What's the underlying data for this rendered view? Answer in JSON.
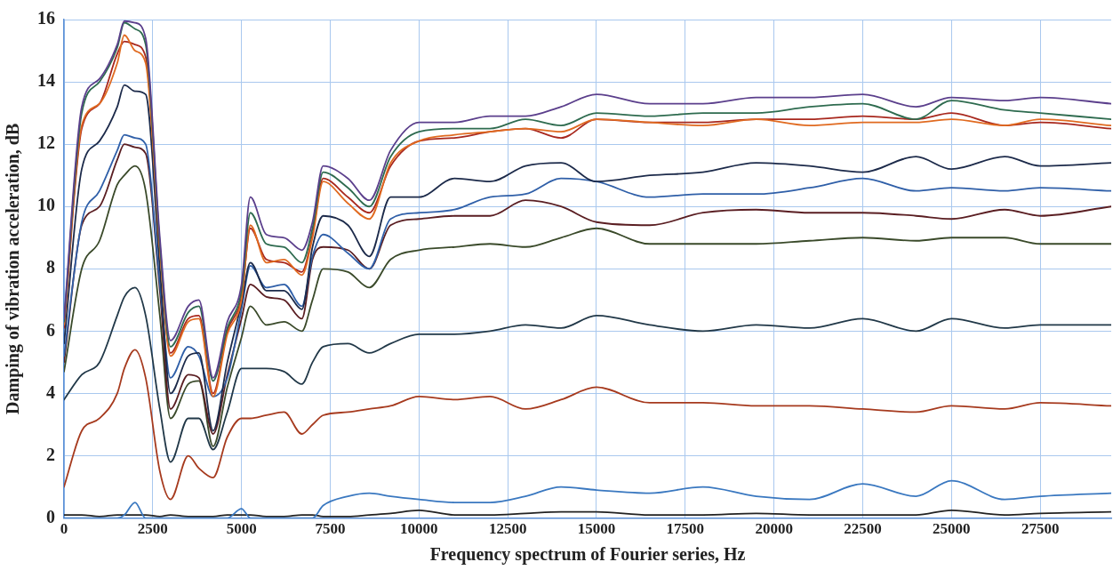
{
  "chart_data": {
    "type": "line",
    "xlabel": "Frequency spectrum of Fourier series, Hz",
    "ylabel": "Damping of vibration acceleration, dB",
    "x": [
      0,
      500,
      1000,
      1500,
      1700,
      2000,
      2300,
      2700,
      3000,
      3500,
      3800,
      4200,
      4600,
      5000,
      5250,
      5700,
      6200,
      6700,
      7000,
      7300,
      8000,
      8600,
      9200,
      10000,
      11000,
      12000,
      13000,
      14000,
      15000,
      16500,
      18000,
      19500,
      21000,
      22500,
      24000,
      25000,
      26500,
      27500,
      29500
    ],
    "xlim": [
      0,
      29500
    ],
    "xticks": [
      0,
      2500,
      5000,
      7500,
      10000,
      12500,
      15000,
      17500,
      20000,
      22500,
      25000,
      27500
    ],
    "ylim": [
      0,
      16
    ],
    "yticks": [
      0,
      2,
      4,
      6,
      8,
      10,
      12,
      14,
      16
    ],
    "grid": true,
    "legend": false,
    "marker": "none",
    "line_style": "solid",
    "series": [
      {
        "color": "#5b3f8c",
        "values": [
          6.4,
          13.2,
          14.1,
          15.2,
          15.95,
          15.9,
          15.4,
          9,
          5.7,
          6.8,
          7.0,
          4.5,
          6.3,
          7.5,
          10.3,
          9.1,
          9.0,
          8.6,
          9.5,
          11.3,
          10.9,
          10.2,
          11.8,
          12.7,
          12.7,
          12.9,
          12.9,
          13.2,
          13.6,
          13.3,
          13.3,
          13.5,
          13.5,
          13.6,
          13.2,
          13.5,
          13.4,
          13.5,
          13.3
        ]
      },
      {
        "color": "#2e6b4f",
        "values": [
          6.3,
          13.0,
          14.0,
          15.1,
          15.9,
          15.7,
          15.2,
          8.8,
          5.5,
          6.6,
          6.8,
          4.4,
          6.1,
          7.3,
          9.8,
          8.8,
          8.7,
          8.2,
          9.3,
          11.1,
          10.6,
          10.0,
          11.6,
          12.4,
          12.5,
          12.5,
          12.8,
          12.6,
          13.0,
          12.9,
          13.0,
          13.0,
          13.2,
          13.3,
          12.8,
          13.4,
          13.1,
          13.0,
          12.8
        ]
      },
      {
        "color": "#e06a20",
        "values": [
          6.2,
          12.6,
          13.3,
          14.6,
          15.5,
          15.0,
          14.6,
          8.6,
          5.2,
          6.3,
          6.4,
          3.9,
          5.9,
          7.0,
          9.4,
          8.2,
          8.3,
          7.8,
          9.0,
          10.8,
          10.1,
          9.6,
          11.4,
          12.1,
          12.3,
          12.4,
          12.5,
          12.4,
          12.8,
          12.7,
          12.6,
          12.8,
          12.6,
          12.7,
          12.7,
          12.8,
          12.6,
          12.8,
          12.6
        ]
      },
      {
        "color": "#a8281e",
        "values": [
          6.1,
          12.5,
          13.3,
          14.9,
          15.3,
          15.2,
          14.8,
          8.7,
          5.3,
          6.4,
          6.5,
          4.0,
          6.0,
          7.1,
          9.3,
          8.3,
          8.2,
          7.9,
          9.1,
          10.9,
          10.3,
          9.8,
          11.3,
          12.1,
          12.2,
          12.4,
          12.5,
          12.2,
          12.8,
          12.7,
          12.7,
          12.8,
          12.8,
          12.9,
          12.8,
          13.0,
          12.6,
          12.7,
          12.5
        ]
      },
      {
        "color": "#1c2a4a",
        "values": [
          5.6,
          11.2,
          12.1,
          13.2,
          13.9,
          13.7,
          13.6,
          8,
          4.0,
          5.2,
          5.3,
          2.8,
          5.0,
          6.9,
          8.2,
          7.3,
          7.3,
          6.7,
          8.7,
          9.7,
          9.4,
          8.4,
          10.3,
          10.3,
          10.9,
          10.8,
          11.3,
          11.4,
          10.8,
          11.0,
          11.1,
          11.4,
          11.3,
          11.1,
          11.6,
          11.2,
          11.6,
          11.3,
          11.4
        ]
      },
      {
        "color": "#2f5fa8",
        "values": [
          5.2,
          9.5,
          10.5,
          11.8,
          12.3,
          12.2,
          12.0,
          7.5,
          4.5,
          5.5,
          5.2,
          3.9,
          4.5,
          6.7,
          8.1,
          7.4,
          7.5,
          6.8,
          8.4,
          9.1,
          8.5,
          8.0,
          9.6,
          9.8,
          9.9,
          10.3,
          10.4,
          10.9,
          10.8,
          10.3,
          10.4,
          10.4,
          10.6,
          10.9,
          10.5,
          10.6,
          10.5,
          10.6,
          10.5
        ]
      },
      {
        "color": "#5a1e22",
        "values": [
          5.0,
          9.4,
          10.0,
          11.5,
          12.0,
          11.9,
          11.7,
          7.3,
          3.5,
          4.6,
          4.5,
          2.7,
          4.6,
          6.4,
          7.5,
          7.1,
          7.0,
          6.4,
          8.3,
          8.7,
          8.6,
          8.0,
          9.4,
          9.6,
          9.7,
          9.7,
          10.2,
          10.0,
          9.5,
          9.4,
          9.8,
          9.9,
          9.8,
          9.8,
          9.7,
          9.6,
          9.9,
          9.7,
          10.0
        ]
      },
      {
        "color": "#3a4a2a",
        "values": [
          4.7,
          8.0,
          8.9,
          10.7,
          11.0,
          11.3,
          10.5,
          6.5,
          3.2,
          4.3,
          4.4,
          2.3,
          4.2,
          5.8,
          6.8,
          6.2,
          6.3,
          6.0,
          7.0,
          8.0,
          7.9,
          7.4,
          8.3,
          8.6,
          8.7,
          8.8,
          8.7,
          9.0,
          9.3,
          8.8,
          8.8,
          8.8,
          8.9,
          9.0,
          8.9,
          9.0,
          9.0,
          8.8,
          8.8
        ]
      },
      {
        "color": "#213848",
        "values": [
          3.8,
          4.6,
          5.0,
          6.5,
          7.1,
          7.4,
          6.5,
          3.5,
          1.8,
          3.2,
          3.2,
          2.2,
          3.4,
          4.8,
          4.8,
          4.8,
          4.7,
          4.3,
          5.0,
          5.5,
          5.6,
          5.3,
          5.6,
          5.9,
          5.9,
          6.0,
          6.2,
          6.1,
          6.5,
          6.2,
          6.0,
          6.2,
          6.1,
          6.4,
          6.0,
          6.4,
          6.1,
          6.2,
          6.2
        ]
      },
      {
        "color": "#a63a1e",
        "values": [
          1.0,
          2.8,
          3.2,
          4.0,
          4.8,
          5.4,
          4.5,
          1.5,
          0.6,
          2.0,
          1.6,
          1.3,
          2.6,
          3.2,
          3.2,
          3.3,
          3.4,
          2.7,
          3.0,
          3.3,
          3.4,
          3.5,
          3.6,
          3.9,
          3.8,
          3.9,
          3.5,
          3.8,
          4.2,
          3.7,
          3.7,
          3.6,
          3.6,
          3.5,
          3.4,
          3.6,
          3.5,
          3.7,
          3.6
        ]
      },
      {
        "color": "#3a78c0",
        "values": [
          0,
          0,
          0,
          0,
          0.1,
          0.5,
          0,
          0,
          0,
          0,
          0,
          0,
          0,
          0.3,
          0,
          0,
          0,
          0,
          0,
          0.4,
          0.7,
          0.8,
          0.7,
          0.6,
          0.5,
          0.5,
          0.7,
          1.0,
          0.9,
          0.8,
          1.0,
          0.7,
          0.6,
          1.1,
          0.7,
          1.2,
          0.6,
          0.7,
          0.8
        ]
      },
      {
        "color": "#222222",
        "values": [
          0.1,
          0.1,
          0.05,
          0.1,
          0.1,
          0.1,
          0.1,
          0.05,
          0.1,
          0.05,
          0.05,
          0.05,
          0.1,
          0.1,
          0.1,
          0.05,
          0.05,
          0.1,
          0.1,
          0.05,
          0.05,
          0.1,
          0.15,
          0.25,
          0.1,
          0.1,
          0.15,
          0.2,
          0.2,
          0.1,
          0.1,
          0.15,
          0.1,
          0.1,
          0.1,
          0.25,
          0.1,
          0.15,
          0.2
        ]
      }
    ]
  }
}
